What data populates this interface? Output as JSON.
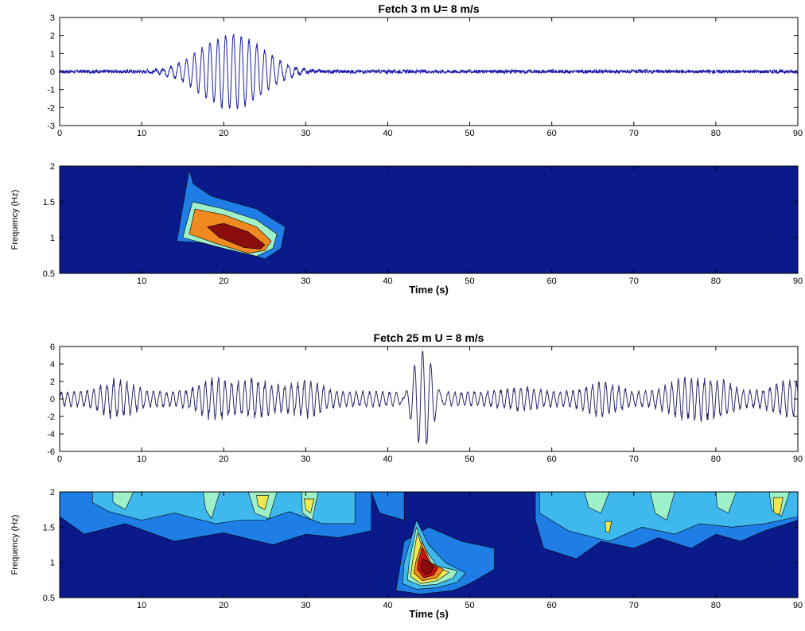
{
  "chart_data": [
    {
      "type": "line",
      "title": "Fetch 3 m    U= 8 m/s",
      "xlabel": "",
      "ylabel": "",
      "xlim": [
        0,
        90
      ],
      "ylim": [
        -3,
        3
      ],
      "xticks": [
        0,
        10,
        20,
        30,
        40,
        50,
        60,
        70,
        80,
        90
      ],
      "yticks": [
        -3,
        -2,
        -1,
        0,
        1,
        2,
        3
      ],
      "grid": false,
      "series": [
        {
          "color": "#1a1aa8",
          "noise_amplitude": 0.1,
          "packet": {
            "center_s": 21.0,
            "width_s": 5.2,
            "amplitude": 2.1,
            "frequency_hz": 1.05
          }
        }
      ]
    },
    {
      "type": "heatmap",
      "title": "",
      "xlabel": "Time (s)",
      "ylabel": "Frequency (Hz)",
      "xlim": [
        0,
        90
      ],
      "ylim": [
        0.5,
        2
      ],
      "xticks": [
        10,
        20,
        30,
        40,
        50,
        60,
        70,
        80,
        90
      ],
      "yticks": [
        0.5,
        1,
        1.5,
        2
      ],
      "background": "#0a1a8a",
      "levels": [
        "#0a1a8a",
        "#1e7ee6",
        "#3fb8ee",
        "#9ef0c8",
        "#f0e850",
        "#f08a20",
        "#8a0c0c"
      ],
      "regions": [
        {
          "x": [
            14.3,
            15.8,
            16.3,
            18.5,
            24,
            27.5,
            27,
            25,
            22,
            18,
            14.3
          ],
          "y": [
            0.95,
            1.95,
            1.75,
            1.58,
            1.4,
            1.15,
            0.85,
            0.7,
            0.82,
            0.92,
            0.95
          ],
          "level": 1
        },
        {
          "x": [
            15,
            16.2,
            20,
            24,
            26.5,
            26,
            24,
            20,
            15
          ],
          "y": [
            1.0,
            1.5,
            1.4,
            1.25,
            1.05,
            0.85,
            0.74,
            0.85,
            1.0
          ],
          "level": 3
        },
        {
          "x": [
            15.8,
            16.5,
            20,
            24,
            25.8,
            25,
            23,
            19,
            15.8
          ],
          "y": [
            1.05,
            1.4,
            1.32,
            1.15,
            0.95,
            0.82,
            0.78,
            0.92,
            1.05
          ],
          "level": 5
        },
        {
          "x": [
            18,
            20,
            23,
            25,
            24.5,
            22.5,
            19.5,
            18
          ],
          "y": [
            1.15,
            1.2,
            1.08,
            0.9,
            0.84,
            0.86,
            1.0,
            1.15
          ],
          "level": 6
        }
      ]
    },
    {
      "type": "line",
      "title": "Fetch 25 m     U = 8 m/s",
      "xlabel": "",
      "ylabel": "",
      "xlim": [
        0,
        90
      ],
      "ylim": [
        -6,
        6
      ],
      "xticks": [
        0,
        10,
        20,
        30,
        40,
        50,
        60,
        70,
        80,
        90
      ],
      "yticks": [
        -6,
        -4,
        -2,
        0,
        2,
        4,
        6
      ],
      "grid": false,
      "series": [
        {
          "color": "#2a2a6a",
          "base_amplitude": 1.4,
          "frequency_hz": 1.25,
          "packet": {
            "center_s": 44.3,
            "width_s": 1.7,
            "amplitude": 5.5,
            "frequency_hz": 1.0
          },
          "groups": [
            {
              "center_s": 7,
              "amplitude": 2.0
            },
            {
              "center_s": 19,
              "amplitude": 2.2
            },
            {
              "center_s": 24,
              "amplitude": 2.1
            },
            {
              "center_s": 30,
              "amplitude": 1.8
            },
            {
              "center_s": 56,
              "amplitude": 0.8
            },
            {
              "center_s": 66,
              "amplitude": 1.8
            },
            {
              "center_s": 76,
              "amplitude": 2.0
            },
            {
              "center_s": 80,
              "amplitude": 2.0
            },
            {
              "center_s": 89,
              "amplitude": 2.1
            }
          ]
        }
      ]
    },
    {
      "type": "heatmap",
      "title": "",
      "xlabel": "Time (s)",
      "ylabel": "Frequency (Hz)",
      "xlim": [
        0,
        90
      ],
      "ylim": [
        0.5,
        2
      ],
      "xticks": [
        10,
        20,
        30,
        40,
        50,
        60,
        70,
        80,
        90
      ],
      "yticks": [
        0.5,
        1,
        1.5,
        2
      ],
      "background": "#0a1a8a",
      "levels": [
        "#0a1a8a",
        "#1e7ee6",
        "#3fb8ee",
        "#9ef0c8",
        "#f0e850",
        "#f08a20",
        "#cc1010",
        "#8a0c0c"
      ],
      "regions": [
        {
          "x": [
            0,
            3,
            6,
            10,
            13,
            16,
            20,
            24,
            28,
            32,
            36,
            38,
            38,
            34,
            30,
            26,
            20,
            14,
            8,
            3,
            0
          ],
          "y": [
            2,
            2,
            2,
            2,
            2,
            2,
            2,
            2,
            2,
            2,
            2,
            2,
            1.45,
            1.35,
            1.4,
            1.25,
            1.42,
            1.3,
            1.55,
            1.4,
            1.65
          ],
          "level": 1
        },
        {
          "x": [
            4,
            7,
            10,
            13,
            16,
            18,
            20,
            24,
            28,
            30,
            32,
            36,
            36,
            32,
            28,
            25,
            22,
            19,
            14,
            10,
            6,
            4
          ],
          "y": [
            2,
            2,
            2,
            2,
            2,
            2,
            2,
            2,
            2,
            2,
            2,
            2,
            1.55,
            1.55,
            1.72,
            1.6,
            1.6,
            1.55,
            1.7,
            1.6,
            1.72,
            1.85
          ],
          "level": 2
        },
        {
          "x": [
            6.5,
            9,
            8,
            6.5
          ],
          "y": [
            2,
            2,
            1.75,
            1.85
          ],
          "level": 3
        },
        {
          "x": [
            17.5,
            19.5,
            18.5,
            17.8
          ],
          "y": [
            2,
            2,
            1.62,
            1.75
          ],
          "level": 3
        },
        {
          "x": [
            23,
            26.5,
            25.5,
            23.8
          ],
          "y": [
            2,
            2,
            1.62,
            1.7
          ],
          "level": 3
        },
        {
          "x": [
            29.5,
            31.5,
            30.8,
            29.6
          ],
          "y": [
            2,
            2,
            1.6,
            1.7
          ],
          "level": 3
        },
        {
          "x": [
            24,
            25.5,
            25,
            24.2
          ],
          "y": [
            1.95,
            1.95,
            1.75,
            1.8
          ],
          "level": 4
        },
        {
          "x": [
            29.8,
            31,
            30.6,
            30
          ],
          "y": [
            1.9,
            1.9,
            1.7,
            1.75
          ],
          "level": 4
        },
        {
          "x": [
            38,
            40,
            42,
            42,
            39
          ],
          "y": [
            2,
            2,
            2,
            1.6,
            1.7
          ],
          "level": 1
        },
        {
          "x": [
            41,
            44,
            48,
            50,
            53,
            53,
            49,
            45,
            42,
            41
          ],
          "y": [
            0.6,
            0.55,
            0.6,
            0.7,
            0.9,
            1.2,
            1.3,
            1.5,
            1.3,
            0.6
          ],
          "level": 1
        },
        {
          "x": [
            41.8,
            43.5,
            46,
            48.5,
            49.5,
            47,
            45,
            43.5,
            42
          ],
          "y": [
            0.7,
            0.62,
            0.64,
            0.72,
            0.85,
            1.0,
            1.25,
            1.6,
            1.0
          ],
          "level": 2
        },
        {
          "x": [
            42.4,
            44,
            46,
            48,
            48.5,
            46,
            44.5,
            43.5,
            42.6
          ],
          "y": [
            0.75,
            0.67,
            0.69,
            0.78,
            0.88,
            0.95,
            1.2,
            1.5,
            1.0
          ],
          "level": 3
        },
        {
          "x": [
            42.8,
            44,
            46,
            47.5,
            45.5,
            44.3,
            43.6,
            43
          ],
          "y": [
            0.8,
            0.7,
            0.74,
            0.86,
            0.95,
            1.18,
            1.42,
            1.0
          ],
          "level": 4
        },
        {
          "x": [
            43.2,
            44.2,
            46,
            46.8,
            45.2,
            44.2,
            43.4
          ],
          "y": [
            0.85,
            0.74,
            0.78,
            0.9,
            1.0,
            1.3,
            1.0
          ],
          "level": 5
        },
        {
          "x": [
            43.6,
            44.4,
            45.6,
            46.1,
            45,
            44.2,
            43.7
          ],
          "y": [
            0.9,
            0.78,
            0.82,
            0.92,
            1.02,
            1.22,
            1.0
          ],
          "level": 6
        },
        {
          "x": [
            44,
            44.6,
            45.3,
            45.6,
            44.8,
            44.2
          ],
          "y": [
            0.92,
            0.82,
            0.86,
            0.94,
            1.02,
            1.05
          ],
          "level": 7
        },
        {
          "x": [
            58,
            61,
            65,
            68,
            72,
            75,
            79,
            82,
            85,
            88,
            90,
            90,
            86,
            83,
            80,
            77,
            73,
            70,
            66,
            63,
            59,
            58
          ],
          "y": [
            2,
            2,
            2,
            2,
            2,
            2,
            2,
            2,
            2,
            2,
            2,
            1.6,
            1.45,
            1.3,
            1.4,
            1.2,
            1.35,
            1.2,
            1.3,
            1.05,
            1.2,
            1.6
          ],
          "level": 1
        },
        {
          "x": [
            58.5,
            62,
            66,
            70,
            74,
            78,
            82,
            85,
            88,
            90,
            90,
            86,
            82,
            78,
            75,
            71,
            67,
            62,
            58.5
          ],
          "y": [
            2,
            2,
            2,
            2,
            2,
            2,
            2,
            2,
            2,
            2,
            1.65,
            1.55,
            1.5,
            1.55,
            1.4,
            1.5,
            1.3,
            1.45,
            1.7
          ],
          "level": 2
        },
        {
          "x": [
            64,
            67,
            66,
            64.5
          ],
          "y": [
            2,
            2,
            1.7,
            1.78
          ],
          "level": 3
        },
        {
          "x": [
            72,
            75,
            74,
            72.6
          ],
          "y": [
            2,
            2,
            1.6,
            1.7
          ],
          "level": 3
        },
        {
          "x": [
            80,
            82.5,
            81.5,
            80.2
          ],
          "y": [
            2,
            2,
            1.7,
            1.78
          ],
          "level": 3
        },
        {
          "x": [
            86.5,
            89,
            88,
            86.8
          ],
          "y": [
            2,
            2,
            1.65,
            1.75
          ],
          "level": 3
        },
        {
          "x": [
            66.5,
            67.3,
            67,
            66.6
          ],
          "y": [
            1.58,
            1.58,
            1.42,
            1.44
          ],
          "level": 4
        },
        {
          "x": [
            87,
            88.2,
            87.8,
            87.1
          ],
          "y": [
            1.92,
            1.92,
            1.68,
            1.7
          ],
          "level": 4
        }
      ]
    }
  ]
}
